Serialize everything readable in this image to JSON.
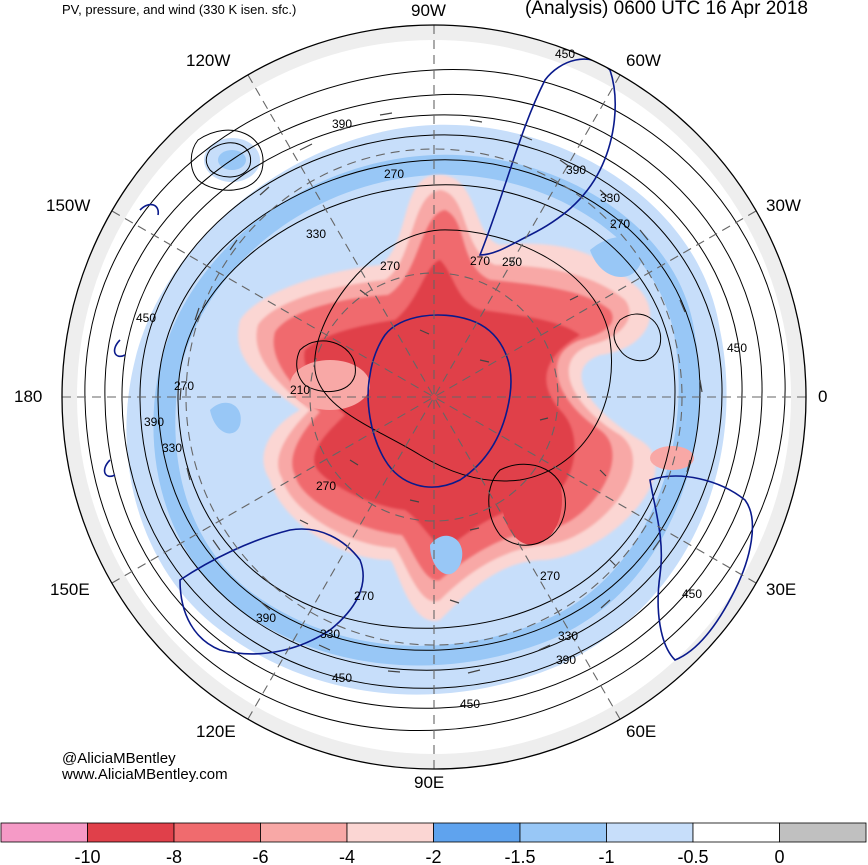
{
  "title_left": "PV, pressure, and wind (330 K isen. sfc.)",
  "title_right": "(Analysis) 0600 UTC 16 Apr 2018",
  "credits": [
    "@AliciaMBentley",
    "www.AliciaMBentley.com"
  ],
  "longitude_labels": [
    "90W",
    "60W",
    "30W",
    "0",
    "30E",
    "60E",
    "90E",
    "120E",
    "150E",
    "180",
    "150W",
    "120W"
  ],
  "contour_labels": [
    "450",
    "390",
    "330",
    "270",
    "270",
    "250",
    "270",
    "330",
    "390",
    "450",
    "210",
    "270",
    "270",
    "270",
    "270",
    "330",
    "390",
    "450",
    "450",
    "390",
    "330",
    "270",
    "390",
    "450",
    "330",
    "390",
    "450"
  ],
  "colorbar": {
    "colors": [
      "#f59ac6",
      "#e0404a",
      "#f06b6e",
      "#f8a8a6",
      "#fbd6d3",
      "#5fa3ee",
      "#98c7f6",
      "#c7defa",
      "#ffffff",
      "#c0c0c0"
    ],
    "tick_labels": [
      "-10",
      "-8",
      "-6",
      "-4",
      "-2",
      "-1.5",
      "-1",
      "-0.5",
      "0"
    ]
  }
}
